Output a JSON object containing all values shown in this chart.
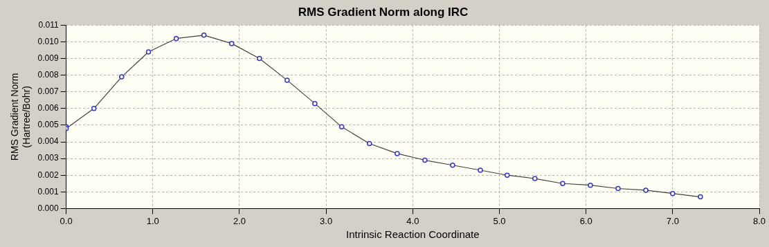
{
  "chart_data": {
    "type": "line",
    "title": "RMS Gradient Norm along IRC",
    "xlabel": "Intrinsic Reaction Coordinate",
    "ylabel": "RMS Gradient Norm (Hartree/Bohr)",
    "x": [
      0,
      0,
      0.32,
      0.64,
      0.95,
      1.27,
      1.59,
      1.91,
      2.23,
      2.55,
      2.87,
      3.18,
      3.5,
      3.82,
      4.14,
      4.46,
      4.78,
      5.09,
      5.41,
      5.73,
      6.05,
      6.37,
      6.69,
      7.0,
      7.32
    ],
    "series": [
      {
        "color": "#3333cc",
        "values": [
          0.0049,
          0.0048,
          0.006,
          0.0079,
          0.0094,
          0.0102,
          0.0104,
          0.0099,
          0.009,
          0.0077,
          0.0063,
          0.0049,
          0.0039,
          0.0033,
          0.0029,
          0.0026,
          0.0023,
          0.002,
          0.0018,
          0.0015,
          0.0014,
          0.0012,
          0.0011,
          0.0009,
          0.0007
        ]
      }
    ],
    "xlim": [
      0,
      8
    ],
    "xticks": [
      {
        "value": 0,
        "label": "0.0"
      },
      {
        "value": 1,
        "label": "1.0"
      },
      {
        "value": 2,
        "label": "2.0"
      },
      {
        "value": 3,
        "label": "3.0"
      },
      {
        "value": 4,
        "label": "4.0"
      },
      {
        "value": 5,
        "label": "5.0"
      },
      {
        "value": 6,
        "label": "6.0"
      },
      {
        "value": 7,
        "label": "7.0"
      },
      {
        "value": 8,
        "label": "8.0"
      }
    ],
    "ylim": [
      0,
      0.011
    ],
    "yticks": [
      {
        "value": 0,
        "label": "0.000"
      },
      {
        "value": 0.001,
        "label": "0.001"
      },
      {
        "value": 0.002,
        "label": "0.002"
      },
      {
        "value": 0.003,
        "label": "0.003"
      },
      {
        "value": 0.004,
        "label": "0.004"
      },
      {
        "value": 0.005,
        "label": "0.005"
      },
      {
        "value": 0.006,
        "label": "0.006"
      },
      {
        "value": 0.007,
        "label": "0.007"
      },
      {
        "value": 0.008,
        "label": "0.008"
      },
      {
        "value": 0.009,
        "label": "0.009"
      },
      {
        "value": 0.01,
        "label": "0.010"
      },
      {
        "value": 0.011,
        "label": "0.011"
      }
    ],
    "grid": true,
    "legend": false,
    "marker": "circle",
    "line_style": "solid"
  }
}
